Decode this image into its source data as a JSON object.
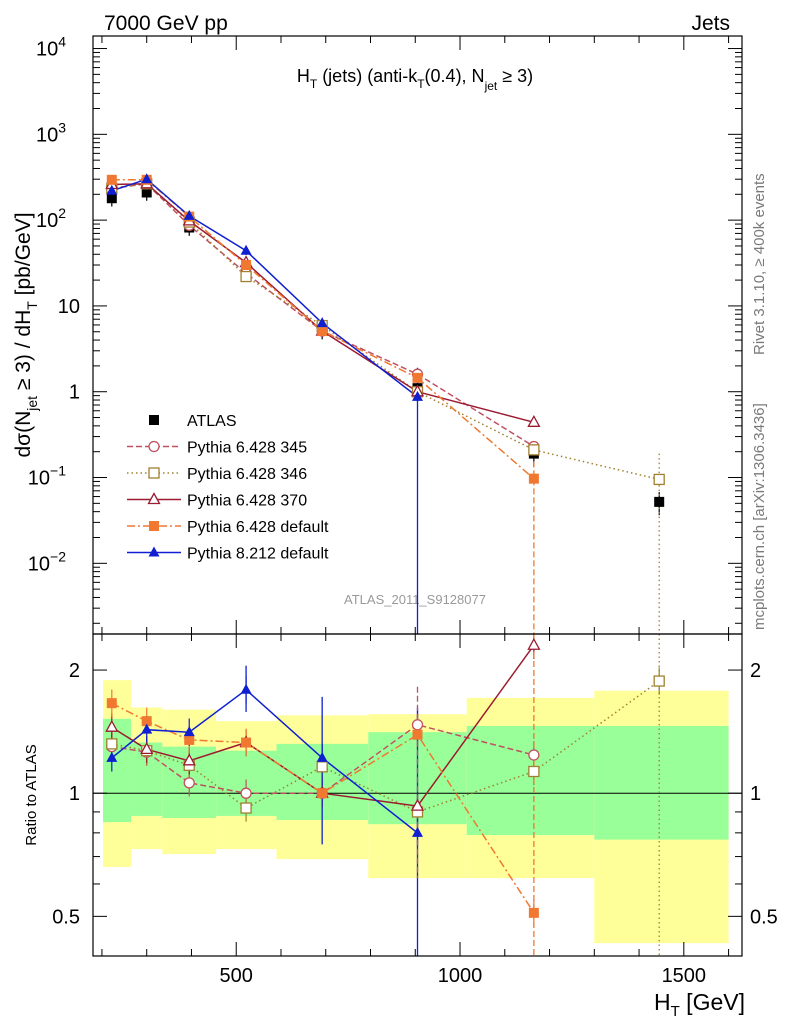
{
  "header": {
    "left": "7000 GeV pp",
    "right": "Jets",
    "rivet": "Rivet 3.1.10, ≥ 400k events",
    "mcplots": "mcplots.cern.ch [arXiv:1306.3436]",
    "analysis": "ATLAS_2011_S9128077"
  },
  "chart_data": [
    {
      "type": "scatter",
      "panel": "main",
      "title": "H_T (jets) (anti-k_T(0.4), N_jet ≥ 3)",
      "xlabel": "H_T [GeV]",
      "ylabel": "dσ(N_jet ≥ 3) / dH_T [pb/GeV]",
      "yscale": "log",
      "xlim": [
        180,
        1630
      ],
      "ylim": [
        0.0015,
        14000
      ],
      "ytick_labels": [
        "10^-2",
        "10^-1",
        "1",
        "10",
        "10^2",
        "10^3",
        "10^4"
      ],
      "series": [
        {
          "name": "ATLAS",
          "color": "#000000",
          "marker": "square-filled",
          "x": [
            222,
            300,
            395,
            522,
            692,
            905,
            1165,
            1445
          ],
          "y": [
            180,
            210,
            82,
            24,
            5.1,
            1.1,
            0.19,
            0.052
          ],
          "yerr_rel": [
            0.2,
            0.2,
            0.2,
            0.2,
            0.2,
            0.3,
            0.3,
            0.3
          ]
        },
        {
          "name": "Pythia 6.428 345",
          "color": "#c05060",
          "marker": "circle-open",
          "dash": "6,3",
          "x": [
            222,
            300,
            395,
            522,
            692,
            905,
            1165
          ],
          "y": [
            235,
            265,
            87,
            24,
            5.1,
            1.6,
            0.23
          ]
        },
        {
          "name": "Pythia 6.428 346",
          "color": "#a08030",
          "marker": "square-open",
          "dash": "1.5,3",
          "x": [
            222,
            300,
            395,
            522,
            692,
            905,
            1165,
            1445
          ],
          "y": [
            235,
            265,
            95,
            22,
            5.9,
            1.0,
            0.21,
            0.095
          ]
        },
        {
          "name": "Pythia 6.428 370",
          "color": "#9b1b30",
          "marker": "triangle-open",
          "dash": "",
          "x": [
            222,
            300,
            395,
            522,
            692,
            905,
            1165
          ],
          "y": [
            260,
            265,
            98,
            32,
            5.1,
            1.0,
            0.44
          ]
        },
        {
          "name": "Pythia 6.428 default",
          "color": "#f07830",
          "marker": "square-filled",
          "dash": "8,3,2,3",
          "x": [
            222,
            300,
            395,
            522,
            692,
            905,
            1165
          ],
          "y": [
            295,
            295,
            110,
            30,
            5.1,
            1.45,
            0.097
          ]
        },
        {
          "name": "Pythia 8.212 default",
          "color": "#1020d0",
          "marker": "triangle-filled",
          "dash": "",
          "x": [
            222,
            300,
            395,
            522,
            692,
            905
          ],
          "y": [
            220,
            300,
            112,
            44,
            6.3,
            0.87
          ]
        }
      ]
    },
    {
      "type": "scatter",
      "panel": "ratio",
      "ylabel": "Ratio to ATLAS",
      "xlabel": "H_T [GeV]",
      "yscale": "log",
      "ylim": [
        0.4,
        2.45
      ],
      "ytick_labels": [
        "0.5",
        "1",
        "2"
      ],
      "xticks": [
        500,
        1000,
        1500
      ],
      "bands": {
        "edges": [
          180,
          265,
          335,
          455,
          590,
          795,
          1015,
          1300,
          1600
        ],
        "yellow_lo": [
          0.66,
          0.73,
          0.71,
          0.73,
          0.69,
          0.62,
          0.62,
          0.43
        ],
        "yellow_hi": [
          1.89,
          1.62,
          1.6,
          1.5,
          1.55,
          1.56,
          1.71,
          1.78
        ],
        "green_lo": [
          0.85,
          0.88,
          0.87,
          0.88,
          0.86,
          0.84,
          0.79,
          0.77
        ],
        "green_hi": [
          1.52,
          1.33,
          1.3,
          1.27,
          1.32,
          1.41,
          1.46,
          1.46
        ]
      },
      "series": [
        {
          "name": "Pythia 6.428 345",
          "x": [
            222,
            300,
            395,
            522,
            692,
            905,
            1165
          ],
          "y": [
            1.3,
            1.26,
            1.06,
            1.0,
            1.0,
            1.47,
            1.24
          ]
        },
        {
          "name": "Pythia 6.428 346",
          "x": [
            222,
            300,
            395,
            522,
            692,
            905,
            1165,
            1445
          ],
          "y": [
            1.32,
            1.27,
            1.17,
            0.92,
            1.16,
            0.9,
            1.13,
            1.88
          ]
        },
        {
          "name": "Pythia 6.428 370",
          "x": [
            222,
            300,
            395,
            522,
            692,
            905,
            1165
          ],
          "y": [
            1.45,
            1.28,
            1.2,
            1.33,
            1.0,
            0.93,
            2.3
          ]
        },
        {
          "name": "Pythia 6.428 default",
          "x": [
            222,
            300,
            395,
            522,
            692,
            905,
            1165
          ],
          "y": [
            1.66,
            1.5,
            1.35,
            1.33,
            1.0,
            1.39,
            0.51
          ]
        },
        {
          "name": "Pythia 8.212 default",
          "x": [
            222,
            300,
            395,
            522,
            692,
            905
          ],
          "y": [
            1.22,
            1.43,
            1.41,
            1.79,
            1.22,
            0.8
          ]
        }
      ]
    }
  ]
}
